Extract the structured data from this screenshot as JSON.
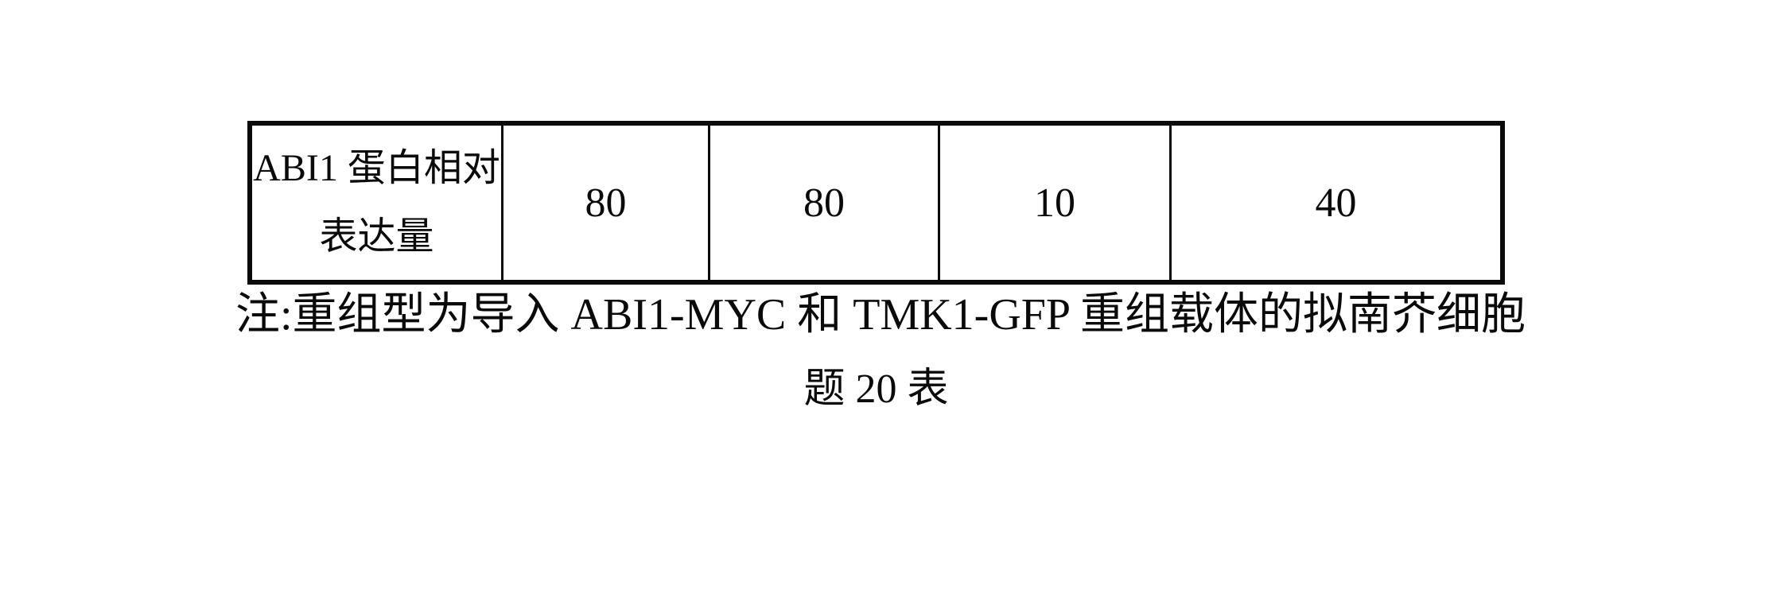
{
  "table": {
    "header": {
      "line1": "ABI1 蛋白相对",
      "line2": "表达量"
    },
    "values": [
      "80",
      "80",
      "10",
      "40"
    ]
  },
  "note": "注:重组型为导入 ABI1-MYC 和 TMK1-GFP 重组载体的拟南芥细胞",
  "caption": "题 20 表",
  "colors": {
    "border": "#0a0a0a",
    "text": "#0a0a0a",
    "background": "#ffffff"
  },
  "chart_data": {
    "type": "table",
    "title": "题 20 表",
    "row_label": "ABI1 蛋白相对表达量",
    "values": [
      80,
      80,
      10,
      40
    ],
    "note": "注:重组型为导入 ABI1-MYC 和 TMK1-GFP 重组载体的拟南芥细胞"
  }
}
